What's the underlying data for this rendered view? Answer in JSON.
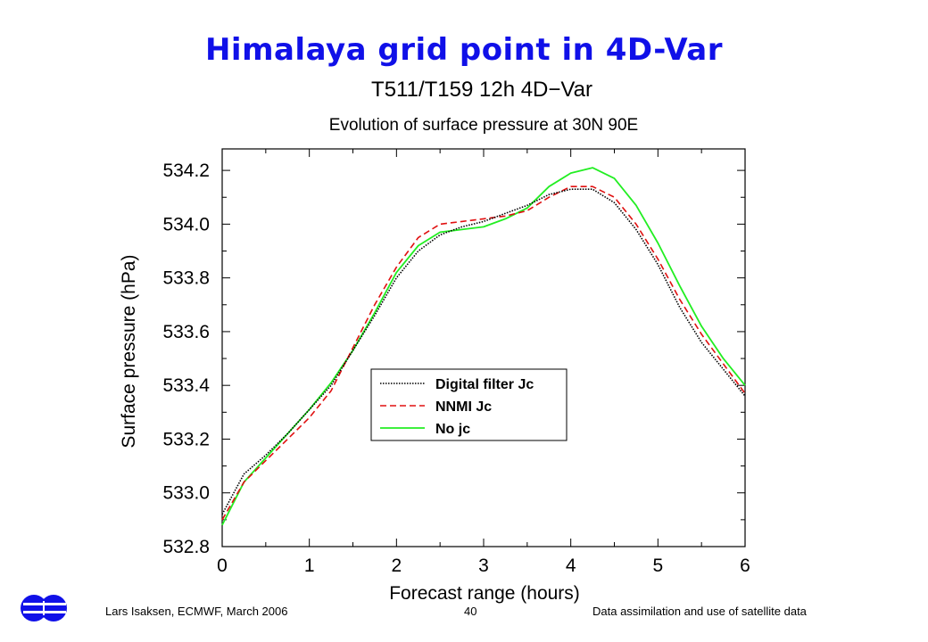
{
  "slide": {
    "title": "Himalaya grid point in 4D-Var"
  },
  "footer": {
    "author": "Lars Isaksen, ECMWF, March 2006",
    "page_number": "40",
    "topic": "Data assimilation and use of satellite data"
  },
  "logo": {
    "icon": "ecmwf-logo-icon",
    "color": "#1010e8"
  },
  "chart_data": {
    "type": "line",
    "title": "T511/T159 12h 4D−Var",
    "subtitle": "Evolution of surface pressure at 30N 90E",
    "xlabel": "Forecast range (hours)",
    "ylabel": "Surface pressure (hPa)",
    "xlim": [
      0,
      6
    ],
    "ylim": [
      532.8,
      534.28
    ],
    "xticks": [
      0,
      1,
      2,
      3,
      4,
      5,
      6
    ],
    "xtick_labels": [
      "0",
      "1",
      "2",
      "3",
      "4",
      "5",
      "6"
    ],
    "yticks": [
      532.8,
      533.0,
      533.2,
      533.4,
      533.6,
      533.8,
      534.0,
      534.2
    ],
    "ytick_labels": [
      "532.8",
      "533.0",
      "533.2",
      "533.4",
      "533.6",
      "533.8",
      "534.0",
      "534.2"
    ],
    "grid": false,
    "legend_position": "center-right",
    "x": [
      0,
      0.25,
      0.5,
      0.75,
      1.0,
      1.25,
      1.5,
      1.75,
      2.0,
      2.25,
      2.5,
      2.75,
      3.0,
      3.25,
      3.5,
      3.75,
      4.0,
      4.25,
      4.5,
      4.75,
      5.0,
      5.25,
      5.5,
      5.75,
      6.0
    ],
    "series": [
      {
        "name": "Digital filter Jc",
        "color": "#000000",
        "style": "dotted",
        "values": [
          532.92,
          533.07,
          533.14,
          533.22,
          533.31,
          533.4,
          533.53,
          533.66,
          533.8,
          533.9,
          533.96,
          533.99,
          534.01,
          534.04,
          534.07,
          534.11,
          534.13,
          534.13,
          534.08,
          533.98,
          533.85,
          533.69,
          533.56,
          533.46,
          533.36
        ]
      },
      {
        "name": "NNMI Jc",
        "color": "#e01010",
        "style": "dashed",
        "values": [
          532.9,
          533.04,
          533.12,
          533.2,
          533.28,
          533.38,
          533.54,
          533.7,
          533.84,
          533.95,
          534.0,
          534.01,
          534.02,
          534.03,
          534.05,
          534.1,
          534.14,
          534.14,
          534.1,
          534.0,
          533.87,
          533.72,
          533.59,
          533.48,
          533.37
        ]
      },
      {
        "name": "No jc",
        "color": "#22ee22",
        "style": "solid",
        "values": [
          532.88,
          533.04,
          533.13,
          533.22,
          533.31,
          533.41,
          533.53,
          533.67,
          533.82,
          533.92,
          533.97,
          533.98,
          533.99,
          534.02,
          534.06,
          534.14,
          534.19,
          534.21,
          534.17,
          534.07,
          533.93,
          533.77,
          533.62,
          533.5,
          533.4
        ]
      }
    ]
  }
}
